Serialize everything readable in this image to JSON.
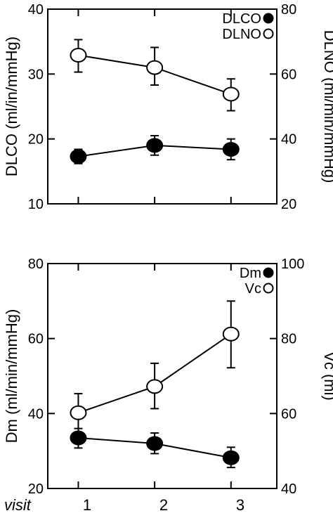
{
  "chart_data": [
    {
      "type": "line",
      "xlabel": "visit",
      "x": [
        1,
        2,
        3
      ],
      "xlim": [
        0.6,
        3.6
      ],
      "left_axis": {
        "label": "DLCO (ml/in/mmHg)",
        "ylim": [
          10,
          40
        ],
        "ticks": [
          10,
          20,
          30,
          40
        ]
      },
      "right_axis": {
        "label": "DLNO (ml/min/mmHg)",
        "ylim": [
          20,
          80
        ],
        "ticks": [
          20,
          40,
          60,
          80
        ]
      },
      "series": [
        {
          "name": "DLCO",
          "axis": "left",
          "marker": "filled-circle",
          "values": [
            17.3,
            19.0,
            18.4
          ],
          "error_low": [
            16.2,
            17.5,
            16.8
          ],
          "error_high": [
            18.4,
            20.5,
            20.0
          ]
        },
        {
          "name": "DLNO",
          "axis": "right",
          "marker": "open-circle",
          "values": [
            65.8,
            62.0,
            53.8
          ],
          "error_low": [
            60.6,
            56.6,
            48.7
          ],
          "error_high": [
            70.6,
            68.2,
            58.5
          ]
        }
      ],
      "legend_position": "top-right",
      "grid": false
    },
    {
      "type": "line",
      "xlabel": "visit",
      "x": [
        1,
        2,
        3
      ],
      "xlim": [
        0.6,
        3.6
      ],
      "left_axis": {
        "label": "Dm (ml/min/mmHg)",
        "ylim": [
          20,
          80
        ],
        "ticks": [
          20,
          40,
          60,
          80
        ]
      },
      "right_axis": {
        "label": "Vc (ml)",
        "ylim": [
          40,
          100
        ],
        "ticks": [
          40,
          60,
          80,
          100
        ]
      },
      "series": [
        {
          "name": "Dm",
          "axis": "left",
          "marker": "filled-circle",
          "values": [
            33.5,
            32.0,
            28.2
          ],
          "error_low": [
            30.8,
            29.3,
            25.6
          ],
          "error_high": [
            36.0,
            34.8,
            31.0
          ]
        },
        {
          "name": "Vc",
          "axis": "right",
          "marker": "open-circle",
          "values": [
            60.2,
            67.2,
            81.2
          ],
          "error_low": [
            55.0,
            61.3,
            72.2
          ],
          "error_high": [
            65.3,
            73.4,
            90.0
          ]
        }
      ],
      "legend_position": "top-right",
      "grid": false
    }
  ],
  "shared_x_axis": {
    "title": "visit",
    "tick_labels": [
      "1",
      "2",
      "3"
    ]
  }
}
